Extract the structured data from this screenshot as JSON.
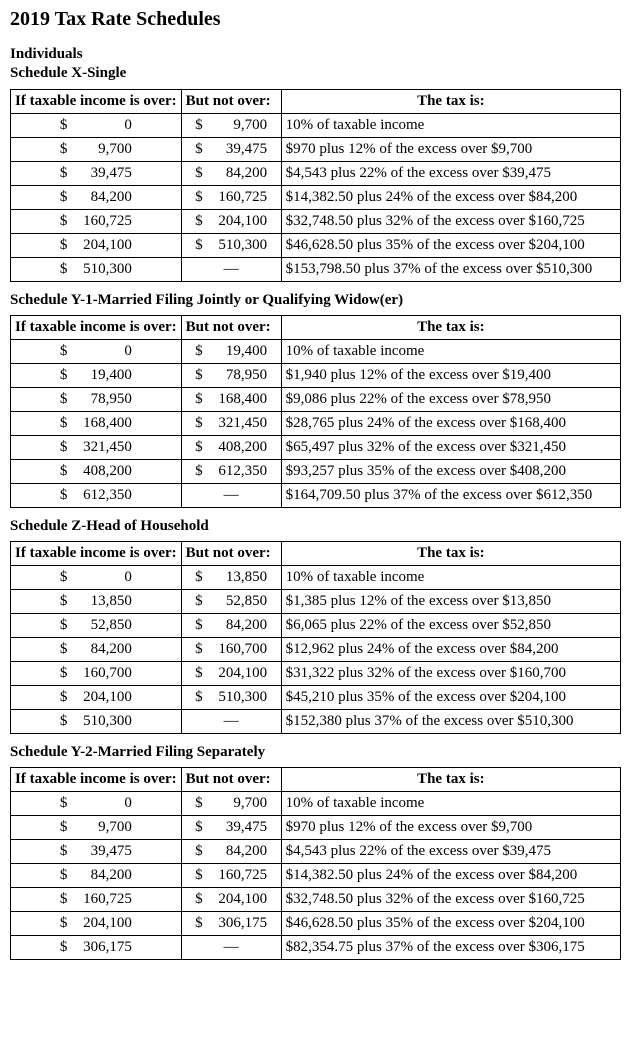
{
  "title": "2019 Tax Rate Schedules",
  "intro_line1": "Individuals",
  "headers": {
    "col1": "If taxable income is over:",
    "col2": "But not over:",
    "col3": "The tax is:"
  },
  "dash": "—",
  "currency": "$",
  "schedules": [
    {
      "title_prefix": "Schedule X-Single",
      "show_intro": true,
      "rows": [
        {
          "over": "0",
          "not_over": "9,700",
          "tax": "10% of taxable income"
        },
        {
          "over": "9,700",
          "not_over": "39,475",
          "tax": "$970 plus 12% of the excess over $9,700"
        },
        {
          "over": "39,475",
          "not_over": "84,200",
          "tax": "$4,543 plus 22% of the excess over $39,475"
        },
        {
          "over": "84,200",
          "not_over": "160,725",
          "tax": "$14,382.50 plus 24% of the excess over $84,200"
        },
        {
          "over": "160,725",
          "not_over": "204,100",
          "tax": "$32,748.50 plus 32% of the excess over $160,725"
        },
        {
          "over": "204,100",
          "not_over": "510,300",
          "tax": "$46,628.50 plus 35% of the excess over $204,100"
        },
        {
          "over": "510,300",
          "not_over": null,
          "tax": "$153,798.50 plus 37% of the excess over $510,300"
        }
      ]
    },
    {
      "title_prefix": "Schedule Y-1-Married Filing Jointly or Qualifying Widow(er)",
      "rows": [
        {
          "over": "0",
          "not_over": "19,400",
          "tax": "10% of taxable income"
        },
        {
          "over": "19,400",
          "not_over": "78,950",
          "tax": "$1,940 plus 12% of the excess over $19,400"
        },
        {
          "over": "78,950",
          "not_over": "168,400",
          "tax": "$9,086 plus 22% of the excess over $78,950"
        },
        {
          "over": "168,400",
          "not_over": "321,450",
          "tax": "$28,765 plus 24% of the excess over $168,400"
        },
        {
          "over": "321,450",
          "not_over": "408,200",
          "tax": "$65,497 plus 32% of the excess over $321,450"
        },
        {
          "over": "408,200",
          "not_over": "612,350",
          "tax": "$93,257 plus 35% of the excess over $408,200"
        },
        {
          "over": "612,350",
          "not_over": null,
          "tax": "$164,709.50 plus 37% of the excess over $612,350"
        }
      ]
    },
    {
      "title_prefix": "Schedule Z-Head of Household",
      "rows": [
        {
          "over": "0",
          "not_over": "13,850",
          "tax": "10% of taxable income"
        },
        {
          "over": "13,850",
          "not_over": "52,850",
          "tax": "$1,385 plus 12% of the excess over $13,850"
        },
        {
          "over": "52,850",
          "not_over": "84,200",
          "tax": "$6,065 plus 22% of the excess over $52,850"
        },
        {
          "over": "84,200",
          "not_over": "160,700",
          "tax": "$12,962 plus 24% of the excess over $84,200"
        },
        {
          "over": "160,700",
          "not_over": "204,100",
          "tax": "$31,322 plus 32% of the excess over $160,700"
        },
        {
          "over": "204,100",
          "not_over": "510,300",
          "tax": "$45,210 plus 35% of the excess over $204,100"
        },
        {
          "over": "510,300",
          "not_over": null,
          "tax": "$152,380 plus 37% of the excess over $510,300"
        }
      ]
    },
    {
      "title_prefix": "Schedule Y-2-Married Filing Separately",
      "rows": [
        {
          "over": "0",
          "not_over": "9,700",
          "tax": "10% of taxable income"
        },
        {
          "over": "9,700",
          "not_over": "39,475",
          "tax": "$970 plus 12% of the excess over $9,700"
        },
        {
          "over": "39,475",
          "not_over": "84,200",
          "tax": "$4,543 plus 22% of the excess over $39,475"
        },
        {
          "over": "84,200",
          "not_over": "160,725",
          "tax": "$14,382.50 plus 24% of the excess over $84,200"
        },
        {
          "over": "160,725",
          "not_over": "204,100",
          "tax": "$32,748.50 plus 32% of the excess over $160,725"
        },
        {
          "over": "204,100",
          "not_over": "306,175",
          "tax": "$46,628.50 plus 35% of the excess over $204,100"
        },
        {
          "over": "306,175",
          "not_over": null,
          "tax": "$82,354.75 plus 37% of the excess over $306,175"
        }
      ]
    }
  ]
}
